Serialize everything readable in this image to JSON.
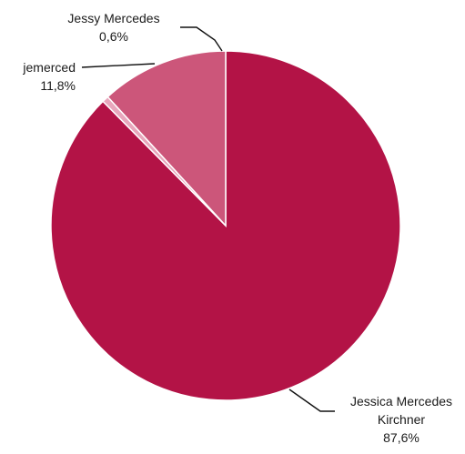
{
  "chart_data": {
    "type": "pie",
    "title": "",
    "slices": [
      {
        "label_lines": [
          "Jessica Mercedes",
          "Kirchner"
        ],
        "value": 87.6,
        "value_label": "87,6%",
        "color": "#b31346"
      },
      {
        "label_lines": [
          "Jessy Mercedes"
        ],
        "value": 0.6,
        "value_label": "0,6%",
        "color": "#e8a6bc"
      },
      {
        "label_lines": [
          "jemerced"
        ],
        "value": 11.8,
        "value_label": "11,8%",
        "color": "#cc567a"
      }
    ],
    "legend": "none",
    "data_labels": "outside-with-leader-lines"
  }
}
